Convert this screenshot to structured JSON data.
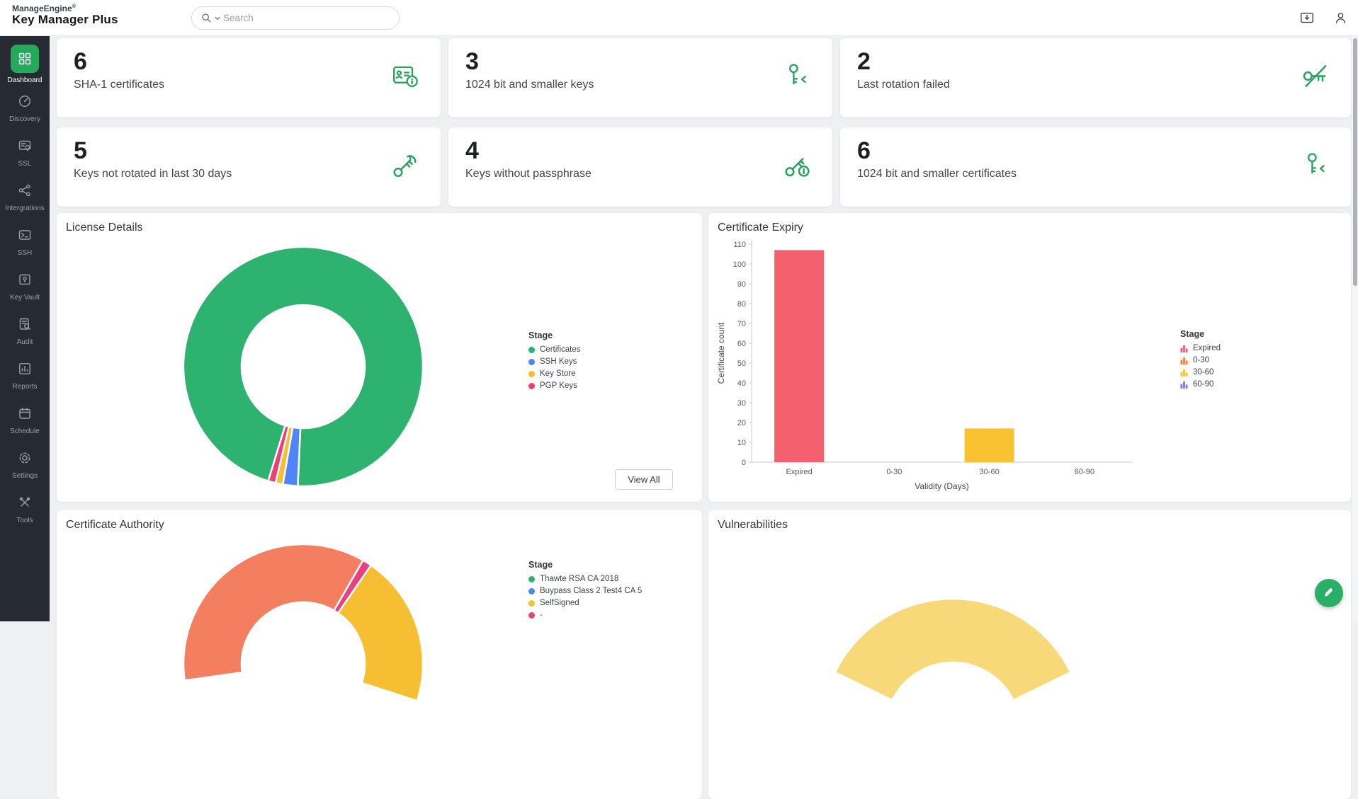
{
  "header": {
    "brand_top": "ManageEngine",
    "brand_reg": "®",
    "brand_bottom": "Key Manager Plus",
    "search_placeholder": "Search"
  },
  "sidebar": {
    "items": [
      {
        "label": "Dashboard",
        "icon": "dashboard-grid-icon",
        "active": true
      },
      {
        "label": "Discovery",
        "icon": "discovery-gauge-icon",
        "active": false
      },
      {
        "label": "SSL",
        "icon": "ssl-certificate-icon",
        "active": false
      },
      {
        "label": "Intergrations",
        "icon": "integrations-nodes-icon",
        "active": false
      },
      {
        "label": "SSH",
        "icon": "ssh-terminal-icon",
        "active": false
      },
      {
        "label": "Key Vault",
        "icon": "key-vault-safe-icon",
        "active": false
      },
      {
        "label": "Audit",
        "icon": "audit-magnifier-icon",
        "active": false
      },
      {
        "label": "Reports",
        "icon": "reports-chart-icon",
        "active": false
      },
      {
        "label": "Schedule",
        "icon": "schedule-calendar-icon",
        "active": false
      },
      {
        "label": "Settings",
        "icon": "settings-gear-icon",
        "active": false
      },
      {
        "label": "Tools",
        "icon": "tools-crossed-icon",
        "active": false
      }
    ]
  },
  "stats": [
    {
      "value": "6",
      "label": "SHA-1 certificates",
      "icon": "certificate-info-icon"
    },
    {
      "value": "3",
      "label": "1024 bit and smaller keys",
      "icon": "key-smaller-icon"
    },
    {
      "value": "2",
      "label": "Last rotation failed",
      "icon": "key-rotation-failed-icon"
    },
    {
      "value": "5",
      "label": "Keys not rotated in last 30 days",
      "icon": "key-rotate-icon"
    },
    {
      "value": "4",
      "label": "Keys without passphrase",
      "icon": "key-info-icon"
    },
    {
      "value": "6",
      "label": "1024 bit and smaller certificates",
      "icon": "key-smaller-icon"
    }
  ],
  "panels": {
    "license": {
      "title": "License Details",
      "view_all": "View All"
    },
    "expiry": {
      "title": "Certificate Expiry"
    },
    "authority": {
      "title": "Certificate Authority"
    },
    "vulnerabilities": {
      "title": "Vulnerabilities"
    }
  },
  "colors": {
    "brand_green": "#27a95d",
    "sidebar_bg": "#252a33",
    "page_bg": "#eef0f2",
    "stat_icon_green": "#27a35b"
  },
  "chart_data": [
    {
      "id": "license",
      "type": "pie",
      "subtype": "donut",
      "title": "License Details",
      "legend_title": "Stage",
      "legend_position": "right",
      "start_angle": 197,
      "series": [
        {
          "label": "Certificates",
          "value": 96,
          "color": "#2eb270"
        },
        {
          "label": "SSH Keys",
          "value": 2,
          "color": "#4f86f7"
        },
        {
          "label": "Key Store",
          "value": 1,
          "color": "#f6bf33"
        },
        {
          "label": "PGP Keys",
          "value": 1,
          "color": "#e8417e"
        }
      ]
    },
    {
      "id": "expiry",
      "type": "bar",
      "title": "Certificate Expiry",
      "categories": [
        "Expired",
        "0-30",
        "30-60",
        "60-90"
      ],
      "values": [
        107,
        0,
        17,
        0
      ],
      "colors": [
        "#f4606e",
        "#f5823c",
        "#f9c233",
        "#8576d9"
      ],
      "xlabel": "Validity (Days)",
      "ylabel": "Certificate count",
      "ylim": [
        0,
        110
      ],
      "ytick_step": 10,
      "grid": false,
      "legend_title": "Stage",
      "legend_position": "right",
      "legend": [
        {
          "label": "Expired",
          "color": "#f4606e"
        },
        {
          "label": "0-30",
          "color": "#f5823c"
        },
        {
          "label": "30-60",
          "color": "#f9c233"
        },
        {
          "label": "60-90",
          "color": "#8576d9"
        }
      ]
    },
    {
      "id": "authority",
      "type": "pie",
      "subtype": "donut",
      "title": "Certificate Authority",
      "legend_title": "Stage",
      "legend_position": "right",
      "legend": [
        {
          "label": "Thawte RSA CA 2018",
          "color": "#2eb270"
        },
        {
          "label": "Buypass Class 2 Test4 CA 5",
          "color": "#4f86f7"
        },
        {
          "label": "SelfSigned",
          "color": "#f6bf33"
        },
        {
          "label": "-",
          "color": "#e8417e"
        }
      ],
      "visible_slices": [
        {
          "color": "#f37f60",
          "start_deg": 262,
          "end_deg": 390
        },
        {
          "color": "#e8417e",
          "start_deg": 390,
          "end_deg": 394.5
        },
        {
          "color": "#f6bf33",
          "start_deg": 394.5,
          "end_deg": 468
        }
      ]
    },
    {
      "id": "vulnerabilities",
      "type": "pie",
      "subtype": "donut",
      "title": "Vulnerabilities",
      "visible_slices": [
        {
          "color": "#f8d97a",
          "start_deg": 296,
          "end_deg": 424
        }
      ]
    }
  ]
}
